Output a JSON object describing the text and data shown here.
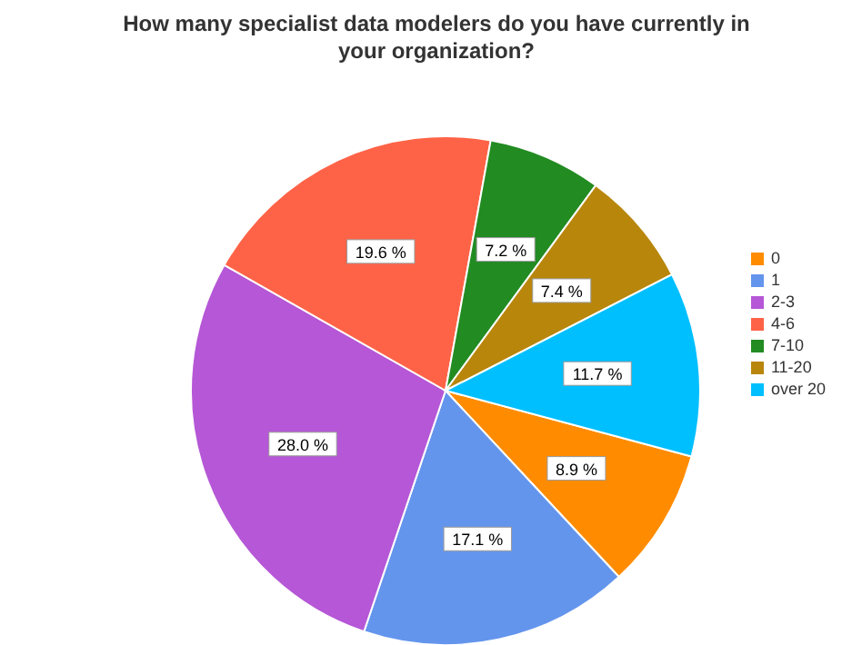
{
  "chart_data": {
    "type": "pie",
    "title": "How many specialist data modelers do you have currently in your organization?",
    "categories": [
      "0",
      "1",
      "2-3",
      "4-6",
      "7-10",
      "11-20",
      "over 20"
    ],
    "values": [
      8.9,
      17.1,
      28.0,
      19.6,
      7.2,
      7.4,
      11.7
    ],
    "colors": [
      "#ff8c00",
      "#6495ed",
      "#b557d6",
      "#ff6347",
      "#228b22",
      "#b8860b",
      "#00bfff"
    ],
    "value_labels": [
      "8.9 %",
      "17.1 %",
      "28.0 %",
      "19.6 %",
      "7.2 %",
      "7.4 %",
      "11.7 %"
    ],
    "legend": "right"
  }
}
